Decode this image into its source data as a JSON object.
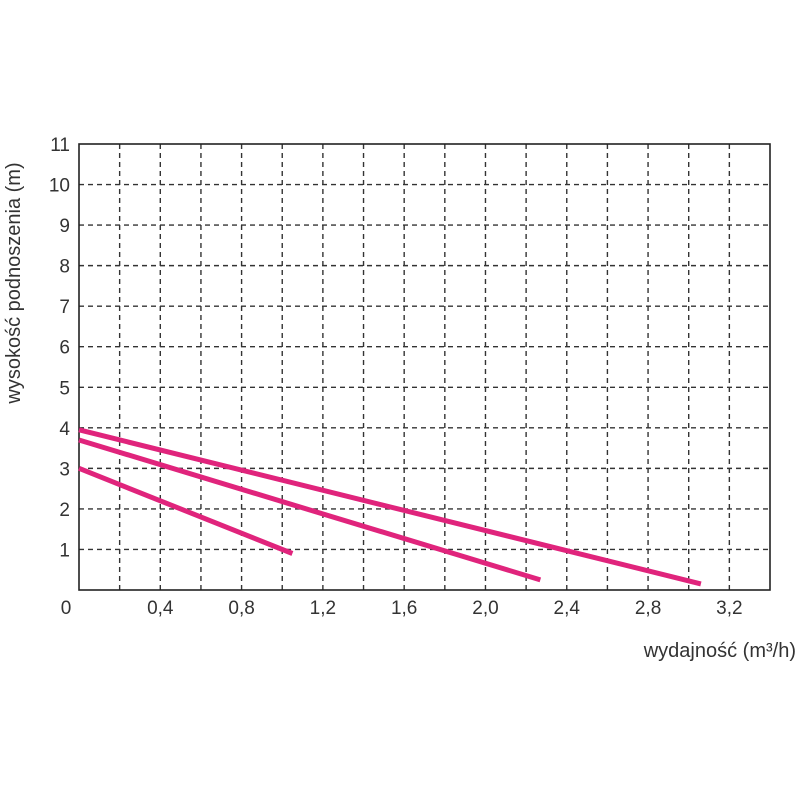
{
  "chart_data": {
    "type": "line",
    "title": "",
    "xlabel": "wydajność (m³/h)",
    "ylabel": "wysokość podnoszenia (m)",
    "xlim": [
      0,
      3.4
    ],
    "ylim": [
      0,
      11
    ],
    "x_ticks": [
      0,
      0.2,
      0.4,
      0.6,
      0.8,
      1.0,
      1.2,
      1.4,
      1.6,
      1.8,
      2.0,
      2.2,
      2.4,
      2.6,
      2.8,
      3.0,
      3.2,
      3.4
    ],
    "x_tick_labels": [
      {
        "value": 0,
        "label": "0"
      },
      {
        "value": 0.4,
        "label": "0,4"
      },
      {
        "value": 0.8,
        "label": "0,8"
      },
      {
        "value": 1.2,
        "label": "1,2"
      },
      {
        "value": 1.6,
        "label": "1,6"
      },
      {
        "value": 2.0,
        "label": "2,0"
      },
      {
        "value": 2.4,
        "label": "2,4"
      },
      {
        "value": 2.8,
        "label": "2,8"
      },
      {
        "value": 3.2,
        "label": "3,2"
      }
    ],
    "y_ticks": [
      1,
      2,
      3,
      4,
      5,
      6,
      7,
      8,
      9,
      10,
      11
    ],
    "grid": true,
    "grid_style": "dashed",
    "line_color": "#e0247c",
    "series": [
      {
        "x": [
          0,
          1.05
        ],
        "y": [
          3.0,
          0.9
        ]
      },
      {
        "x": [
          0,
          2.27
        ],
        "y": [
          3.7,
          0.25
        ]
      },
      {
        "x": [
          0,
          3.06
        ],
        "y": [
          3.95,
          0.15
        ]
      }
    ]
  }
}
